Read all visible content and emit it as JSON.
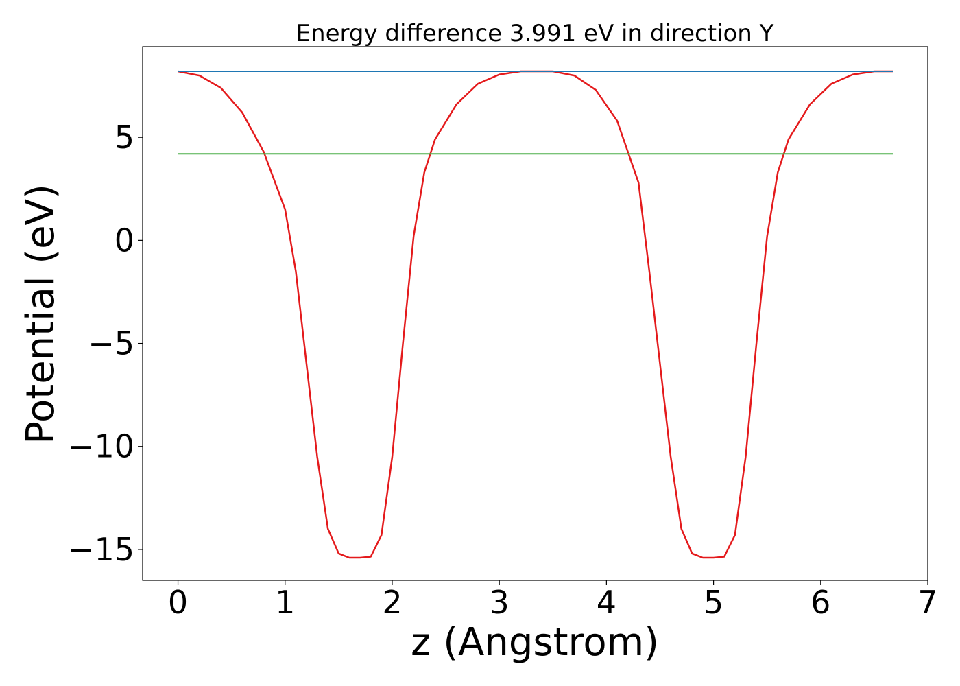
{
  "chart_data": {
    "type": "line",
    "title": "Energy difference 3.991 eV in direction Y",
    "xlabel": "z (Angstrom)",
    "ylabel": "Potential (eV)",
    "xlim": [
      -0.33,
      7.0
    ],
    "ylim": [
      -16.5,
      9.4
    ],
    "xticks": [
      0,
      1,
      2,
      3,
      4,
      5,
      6,
      7
    ],
    "xtick_labels": [
      "0",
      "1",
      "2",
      "3",
      "4",
      "5",
      "6",
      "7"
    ],
    "yticks": [
      5,
      0,
      -5,
      -10,
      -15
    ],
    "ytick_labels": [
      "5",
      "0",
      "−5",
      "−10",
      "−15"
    ],
    "grid": false,
    "series": [
      {
        "color": "#e41a1c",
        "x": [
          0,
          0.2,
          0.4,
          0.6,
          0.8,
          1.0,
          1.1,
          1.2,
          1.3,
          1.4,
          1.5,
          1.6,
          1.7,
          1.8,
          1.9,
          2.0,
          2.1,
          2.2,
          2.3,
          2.4,
          2.6,
          2.8,
          3.0,
          3.2,
          3.35,
          3.5,
          3.7,
          3.9,
          4.1,
          4.3,
          4.4,
          4.5,
          4.6,
          4.7,
          4.8,
          4.9,
          5.0,
          5.1,
          5.2,
          5.3,
          5.4,
          5.5,
          5.6,
          5.7,
          5.9,
          6.1,
          6.3,
          6.5,
          6.68
        ],
        "y": [
          8.2,
          8.0,
          7.4,
          6.2,
          4.3,
          1.5,
          -1.5,
          -6.0,
          -10.5,
          -14.0,
          -15.2,
          -15.4,
          -15.4,
          -15.35,
          -14.3,
          -10.5,
          -5.0,
          0.2,
          3.3,
          4.9,
          6.6,
          7.6,
          8.05,
          8.2,
          8.2,
          8.2,
          8.0,
          7.3,
          5.8,
          2.8,
          -1.5,
          -6.0,
          -10.5,
          -14.0,
          -15.2,
          -15.4,
          -15.4,
          -15.35,
          -14.3,
          -10.5,
          -5.0,
          0.2,
          3.3,
          4.9,
          6.6,
          7.6,
          8.05,
          8.2,
          8.2
        ]
      },
      {
        "color": "#1f77b4",
        "x": [
          0,
          6.68
        ],
        "y": [
          8.2,
          8.2
        ]
      },
      {
        "color": "#4daf4a",
        "x": [
          0,
          6.68
        ],
        "y": [
          4.2,
          4.2
        ]
      }
    ]
  }
}
